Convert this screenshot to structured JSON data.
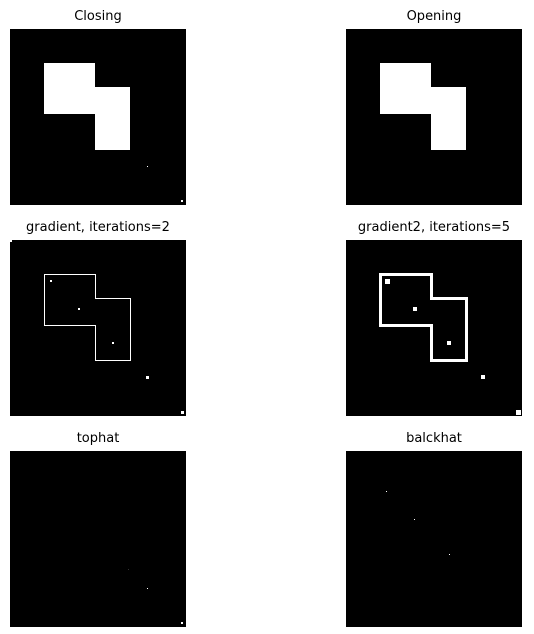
{
  "panels": [
    {
      "title": "Closing"
    },
    {
      "title": "Opening"
    },
    {
      "title": "gradient, iterations=2"
    },
    {
      "title": "gradient2, iterations=5"
    },
    {
      "title": "tophat"
    },
    {
      "title": "balckhat"
    }
  ],
  "colors": {
    "image_background": "#000000",
    "foreground": "#ffffff",
    "page_background": "#ffffff"
  }
}
